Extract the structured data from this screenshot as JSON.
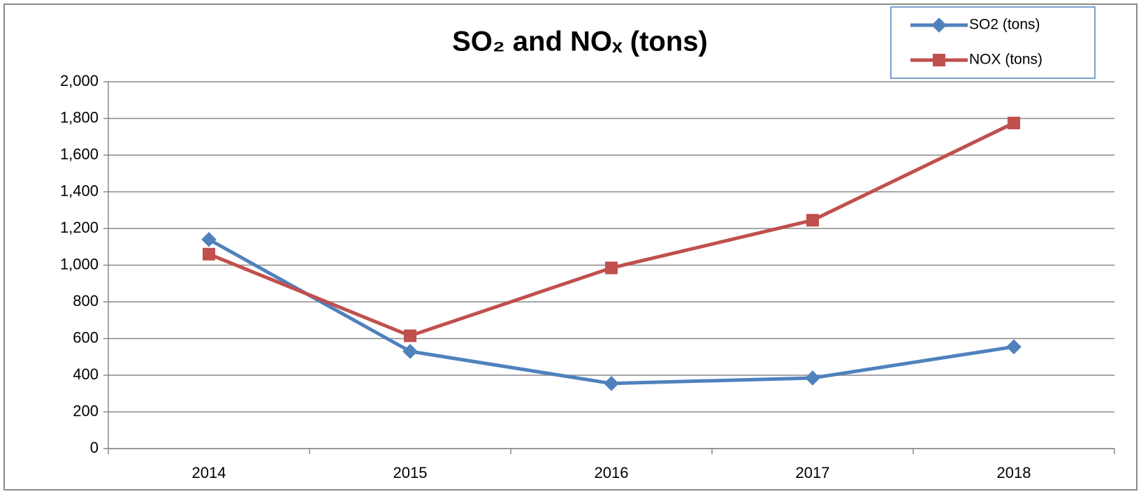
{
  "chart_data": {
    "type": "line",
    "title": "SO₂ and NOₓ (tons)",
    "categories": [
      "2014",
      "2015",
      "2016",
      "2017",
      "2018"
    ],
    "series": [
      {
        "name": "SO2 (tons)",
        "color": "#4f81bd",
        "marker": "diamond",
        "values": [
          1140,
          530,
          355,
          385,
          555
        ]
      },
      {
        "name": "NOX (tons)",
        "color": "#c0504d",
        "marker": "square",
        "values": [
          1060,
          615,
          985,
          1245,
          1775
        ]
      }
    ],
    "ylim": [
      0,
      2000
    ],
    "yticks": [
      0,
      200,
      400,
      600,
      800,
      {
        "value": 1000,
        "label": "1,000"
      },
      {
        "value": 1200,
        "label": "1,200"
      },
      {
        "value": 1400,
        "label": "1,400"
      },
      {
        "value": 1600,
        "label": "1,600"
      },
      {
        "value": 1800,
        "label": "1,800"
      },
      {
        "value": 2000,
        "label": "2,000"
      }
    ],
    "grid": true,
    "legend": "top-right"
  }
}
